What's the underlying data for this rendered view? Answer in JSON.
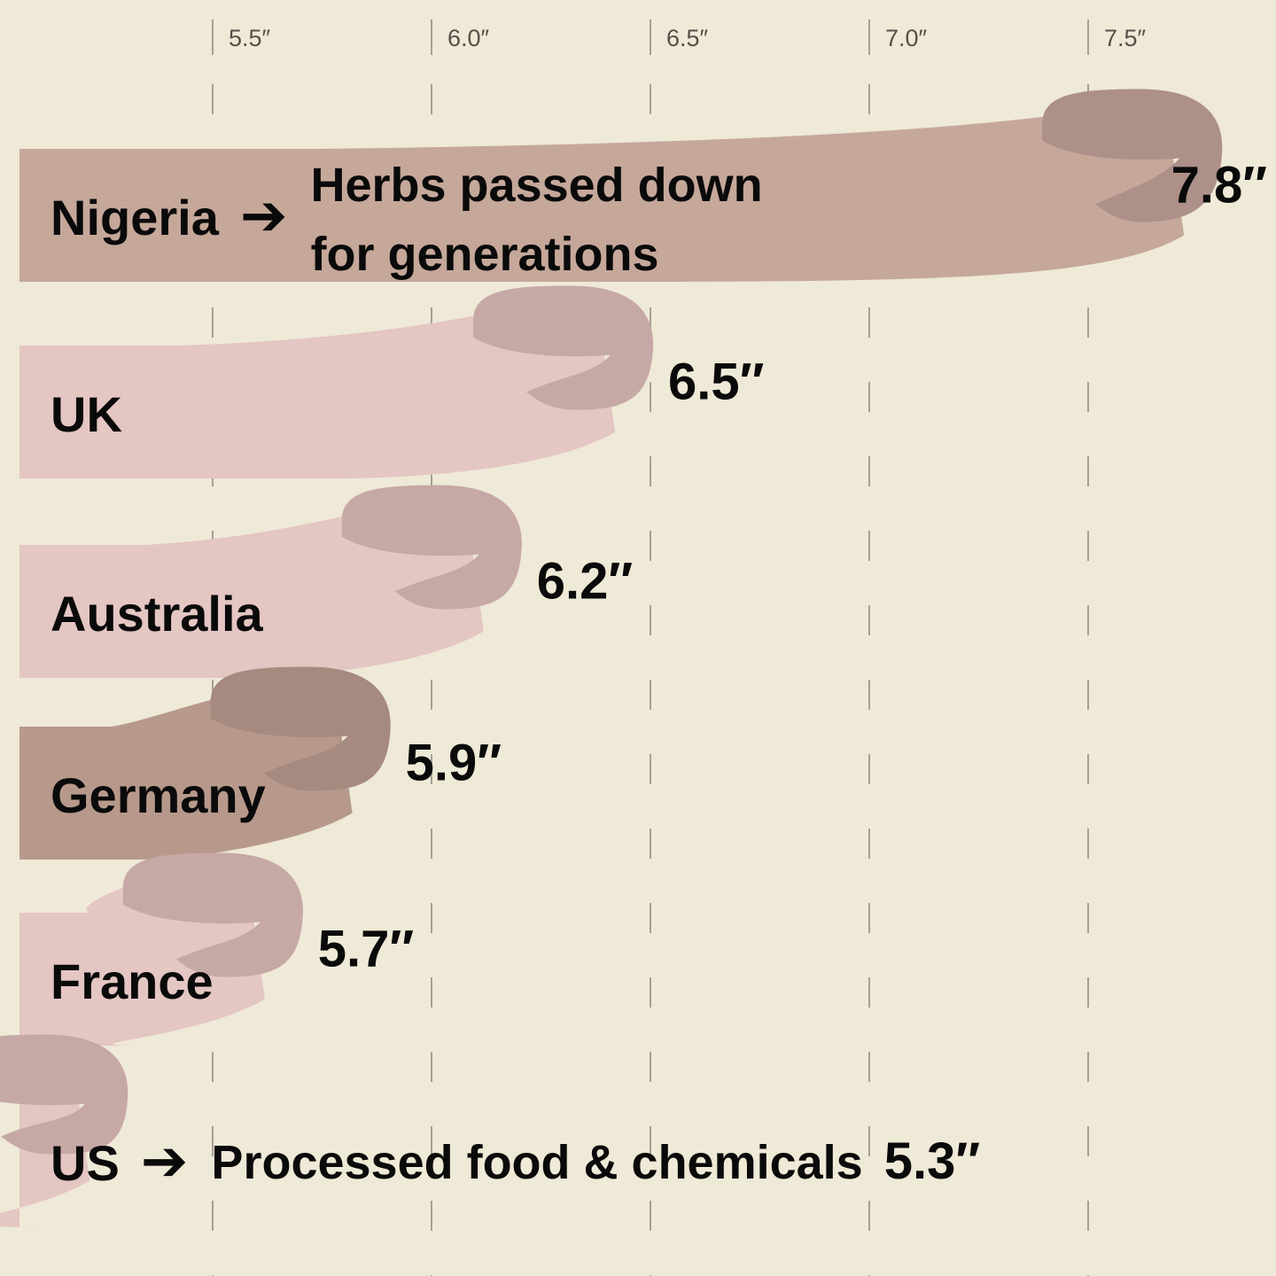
{
  "colors": {
    "background": "#efe9d7",
    "gridline": "#a59f95",
    "text": "#0a0a0a",
    "tick_text": "#555049"
  },
  "chart_data": {
    "type": "bar",
    "orientation": "horizontal",
    "categories": [
      "Nigeria",
      "UK",
      "Australia",
      "Germany",
      "France",
      "US"
    ],
    "values": [
      7.8,
      6.5,
      6.2,
      5.9,
      5.7,
      5.3
    ],
    "value_labels": [
      "7.8″",
      "6.5″",
      "6.2″",
      "5.9″",
      "5.7″",
      "5.3″"
    ],
    "annotations": [
      {
        "category": "Nigeria",
        "arrow": "➔",
        "lines": [
          "Herbs passed down",
          "for generations"
        ]
      },
      {
        "category": "US",
        "arrow": "➔",
        "lines": [
          "Processed food & chemicals"
        ]
      }
    ],
    "bar_colors": [
      {
        "shaft": "#c5a89a",
        "tip": "#ad9088"
      },
      {
        "shaft": "#e4c6c2",
        "tip": "#c6a8a5"
      },
      {
        "shaft": "#e4c6c2",
        "tip": "#c6a8a5"
      },
      {
        "shaft": "#b7998b",
        "tip": "#a68a80"
      },
      {
        "shaft": "#e4c6c2",
        "tip": "#c6a8a5"
      },
      {
        "shaft": "#e4c6c2",
        "tip": "#c6a8a5"
      }
    ],
    "x_ticks": [
      5.5,
      6.0,
      6.5,
      7.0,
      7.5
    ],
    "x_tick_labels": [
      "5.5″",
      "6.0″",
      "6.5″",
      "7.0″",
      "7.5″"
    ],
    "xlim": [
      5.06,
      7.93
    ],
    "title": "",
    "xlabel": "",
    "ylabel": "",
    "grid": true,
    "grid_style": "dashed-vertical"
  }
}
